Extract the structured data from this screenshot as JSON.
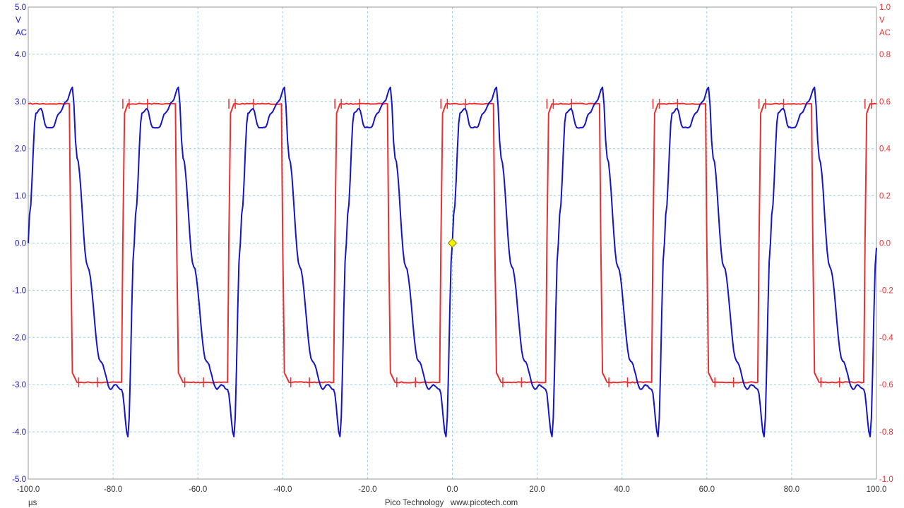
{
  "chart_data": {
    "type": "line",
    "title": "",
    "footer": "Pico Technology   www.picotech.com",
    "x_unit_label": "µs",
    "xlim": [
      -100,
      100
    ],
    "x_ticks": [
      "-100.0",
      "-80.0",
      "-60.0",
      "-40.0",
      "-20.0",
      "0.0",
      "20.0",
      "40.0",
      "60.0",
      "80.0",
      "100.0"
    ],
    "left_axis": {
      "unit": "V",
      "coupling": "AC",
      "color": "#1414c8",
      "ylim": [
        -5,
        5
      ],
      "ticks": [
        "5.0",
        "4.0",
        "3.0",
        "2.0",
        "1.0",
        "0.0",
        "-1.0",
        "-2.0",
        "-3.0",
        "-4.0",
        "-5.0"
      ]
    },
    "right_axis": {
      "unit": "V",
      "coupling": "AC",
      "color": "#e83030",
      "ylim": [
        -1,
        1
      ],
      "ticks": [
        "1.0",
        "0.8",
        "0.6",
        "0.4",
        "0.2",
        "0.0",
        "-0.2",
        "-0.4",
        "-0.6",
        "-0.8",
        "-1.0"
      ]
    },
    "grid": true,
    "trigger_marker": {
      "x": 0,
      "y": 0,
      "color": "#f0f000"
    },
    "series": [
      {
        "axis": "right",
        "color": "#e83030",
        "shape": "square",
        "period": 25,
        "high": 0.59,
        "low": -0.59,
        "fall_time": -89.9,
        "rise_time": -77.4,
        "x": [
          -100,
          -90.3,
          -90.0,
          -89.6,
          -88.5,
          -78.0,
          -77.7,
          -77.3,
          -76.5,
          -65.3,
          -65.0,
          -64.6,
          -63.5,
          -53.0,
          -52.7,
          -52.3,
          -51.5,
          -40.3,
          -40.0,
          -39.6,
          -38.5,
          -28.0,
          -27.7,
          -27.3,
          -26.5,
          -15.3,
          -15.0,
          -14.6,
          -13.5,
          -3.0,
          -2.7,
          -2.3,
          -1.5,
          9.7,
          10.0,
          10.4,
          11.5,
          22.0,
          22.3,
          22.7,
          23.5,
          34.7,
          35.0,
          35.4,
          36.5,
          47.0,
          47.3,
          47.7,
          48.5,
          59.7,
          60.0,
          60.4,
          61.5,
          72.0,
          72.3,
          72.7,
          73.5,
          84.7,
          85.0,
          85.4,
          86.5,
          97.0,
          97.3,
          97.7,
          98.5,
          100
        ],
        "y": [
          0.59,
          0.59,
          0.0,
          -0.55,
          -0.59,
          -0.59,
          0.0,
          0.55,
          0.59,
          0.59,
          0.0,
          -0.55,
          -0.59,
          -0.59,
          0.0,
          0.55,
          0.59,
          0.59,
          0.0,
          -0.55,
          -0.59,
          -0.59,
          0.0,
          0.55,
          0.59,
          0.59,
          0.0,
          -0.55,
          -0.59,
          -0.59,
          0.0,
          0.55,
          0.59,
          0.59,
          0.0,
          -0.55,
          -0.59,
          -0.59,
          0.0,
          0.55,
          0.59,
          0.59,
          0.0,
          -0.55,
          -0.59,
          -0.59,
          0.0,
          0.55,
          0.59,
          0.59,
          0.0,
          -0.55,
          -0.59,
          -0.59,
          0.0,
          0.55,
          0.59,
          0.59,
          0.0,
          -0.55,
          -0.59,
          -0.59,
          0.0,
          0.55,
          0.59,
          0.59
        ]
      },
      {
        "axis": "left",
        "color": "#1414c8",
        "shape": "ringing",
        "period": 25,
        "x": [
          -100,
          -99.7,
          -98.2,
          -97.0,
          -95.7,
          -94.2,
          -92.7,
          -91.0,
          -89.6,
          -88.5,
          -86.0,
          -83.0,
          -80.5,
          -79.5,
          -78.0,
          -76.5,
          -75.0,
          -74.7,
          -73.2,
          -72.0,
          -70.7,
          -69.2,
          -67.7,
          -66.0,
          -64.6,
          -63.5,
          -61.0,
          -58.0,
          -55.5,
          -54.5,
          -53.0,
          -51.5,
          -50.0,
          -49.7,
          -48.2,
          -47.0,
          -45.7,
          -44.2,
          -42.7,
          -41.0,
          -39.6,
          -38.5,
          -36.0,
          -33.0,
          -30.5,
          -29.5,
          -28.0,
          -26.5,
          -25.0,
          -24.7,
          -23.2,
          -22.0,
          -20.7,
          -19.2,
          -17.7,
          -16.0,
          -14.6,
          -13.5,
          -11.0,
          -8.0,
          -5.5,
          -4.5,
          -3.0,
          -1.5,
          0.0,
          0.3,
          1.8,
          3.0,
          4.3,
          5.8,
          7.3,
          9.0,
          10.4,
          11.5,
          14.0,
          17.0,
          19.5,
          20.5,
          22.0,
          23.5,
          25.0,
          25.3,
          26.8,
          28.0,
          29.3,
          30.8,
          32.3,
          34.0,
          35.4,
          36.5,
          39.0,
          42.0,
          44.5,
          45.5,
          47.0,
          48.5,
          50.0,
          50.3,
          51.8,
          53.0,
          54.3,
          55.8,
          57.3,
          59.0,
          60.4,
          61.5,
          64.0,
          67.0,
          69.5,
          70.5,
          72.0,
          73.5,
          75.0,
          75.3,
          76.8,
          78.0,
          79.3,
          80.8,
          82.3,
          84.0,
          85.4,
          86.5,
          89.0,
          92.0,
          94.5,
          95.5,
          97.0,
          98.5,
          100
        ],
        "y": [
          0.0,
          0.6,
          2.75,
          2.85,
          2.45,
          2.45,
          2.75,
          3.0,
          3.3,
          1.8,
          -0.5,
          -2.5,
          -3.1,
          -3.0,
          -3.1,
          -4.1,
          0.0,
          0.6,
          2.75,
          2.85,
          2.45,
          2.45,
          2.75,
          3.0,
          3.3,
          1.8,
          -0.5,
          -2.5,
          -3.1,
          -3.0,
          -3.1,
          -4.1,
          0.0,
          0.6,
          2.75,
          2.85,
          2.45,
          2.45,
          2.75,
          3.0,
          3.3,
          1.8,
          -0.5,
          -2.5,
          -3.1,
          -3.0,
          -3.1,
          -4.1,
          0.0,
          0.6,
          2.75,
          2.85,
          2.45,
          2.45,
          2.75,
          3.0,
          3.3,
          1.8,
          -0.5,
          -2.5,
          -3.1,
          -3.0,
          -3.1,
          -4.1,
          0.0,
          0.6,
          2.75,
          2.85,
          2.45,
          2.45,
          2.75,
          3.0,
          3.3,
          1.8,
          -0.5,
          -2.5,
          -3.1,
          -3.0,
          -3.1,
          -4.1,
          0.0,
          0.6,
          2.75,
          2.85,
          2.45,
          2.45,
          2.75,
          3.0,
          3.3,
          1.8,
          -0.5,
          -2.5,
          -3.1,
          -3.0,
          -3.1,
          -4.1,
          0.0,
          0.6,
          2.75,
          2.85,
          2.45,
          2.45,
          2.75,
          3.0,
          3.3,
          1.8,
          -0.5,
          -2.5,
          -3.1,
          -3.0,
          -3.1,
          -4.1,
          0.0,
          0.6,
          2.75,
          2.85,
          2.45,
          2.45,
          2.75,
          3.0,
          3.3,
          1.8,
          -0.5,
          -2.5,
          -3.1,
          -3.0,
          -3.1,
          -4.1,
          -0.1
        ]
      }
    ]
  }
}
